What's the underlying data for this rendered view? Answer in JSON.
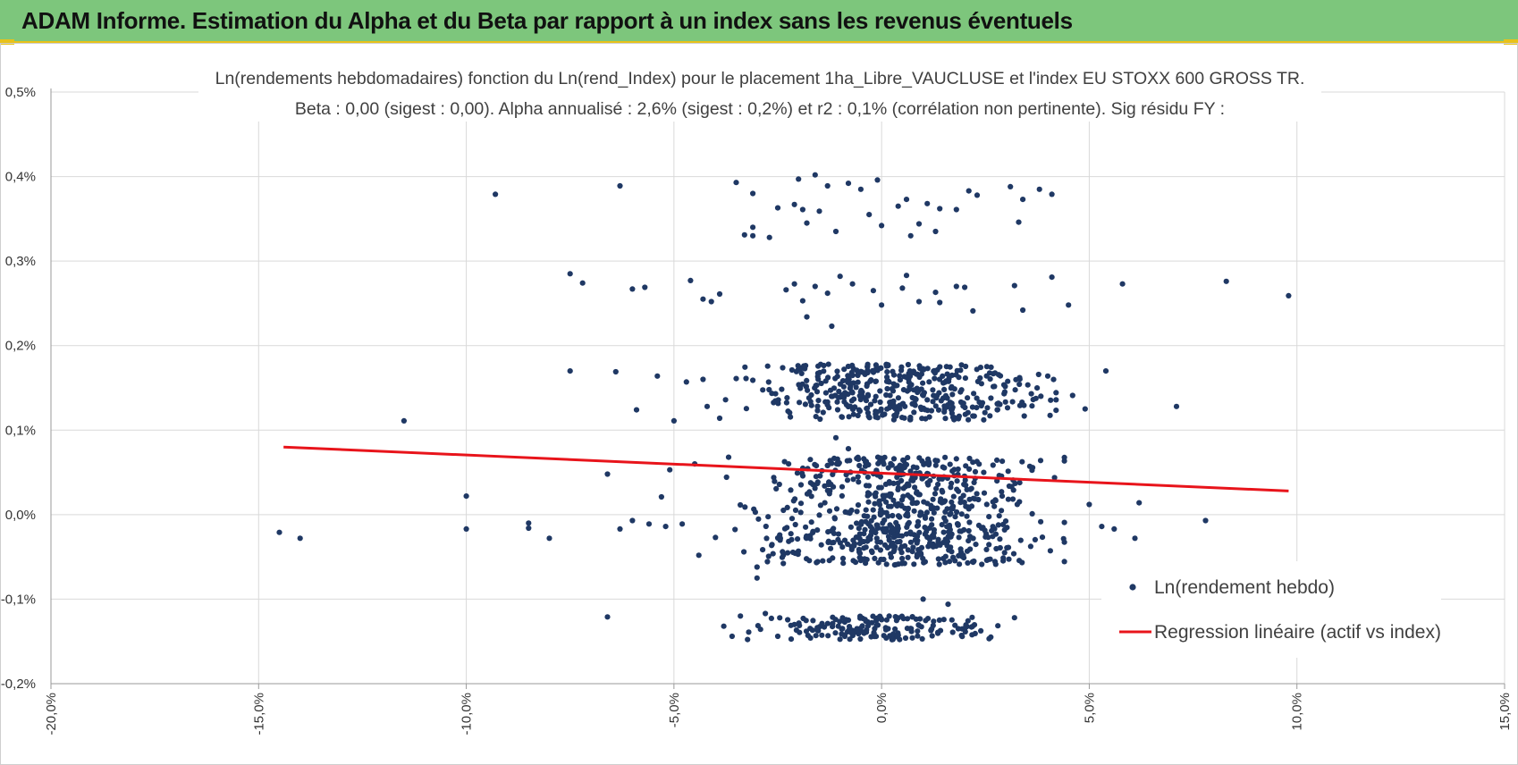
{
  "header": {
    "title": "ADAM Informe. Estimation du Alpha et du Beta par rapport à un index sans les revenus éventuels",
    "background_color": "#7dc67c",
    "accent_color": "#e8c21a"
  },
  "chart_data": {
    "type": "scatter",
    "title": [
      "Ln(rendements hebdomadaires) fonction du Ln(rend_Index) pour le placement 1ha_Libre_VAUCLUSE et l'index EU STOXX 600 GROSS TR.",
      "Beta : 0,00 (sigest : 0,00).  Alpha annualisé : 2,6% (sigest : 0,2%) et r2 : 0,1% (corrélation non pertinente). Sig résidu FY :"
    ],
    "xlabel": "",
    "ylabel": "",
    "xlim": [
      -20,
      15
    ],
    "ylim": [
      -0.2,
      0.5
    ],
    "x_ticks": [
      -20,
      -15,
      -10,
      -5,
      0,
      5,
      10,
      15
    ],
    "x_tick_labels": [
      "-20,0%",
      "-15,0%",
      "-10,0%",
      "-5,0%",
      "0,0%",
      "5,0%",
      "10,0%",
      "15,0%"
    ],
    "y_ticks": [
      -0.2,
      -0.1,
      0.0,
      0.1,
      0.2,
      0.3,
      0.4,
      0.5
    ],
    "y_tick_labels": [
      "-0,2%",
      "-0,1%",
      "0,0%",
      "0,1%",
      "0,2%",
      "0,3%",
      "0,4%",
      "0,5%"
    ],
    "grid": true,
    "legend_position": "bottom-right",
    "series": [
      {
        "name": "Ln(rendement hebdo)",
        "kind": "scatter",
        "color": "#1f3864",
        "points": [
          [
            -9.3,
            0.379
          ],
          [
            -6.3,
            0.389
          ],
          [
            -3.5,
            0.393
          ],
          [
            -3.1,
            0.38
          ],
          [
            -3.3,
            0.331
          ],
          [
            -3.1,
            0.34
          ],
          [
            -3.1,
            0.33
          ],
          [
            -2.7,
            0.328
          ],
          [
            -2.5,
            0.363
          ],
          [
            -2.1,
            0.367
          ],
          [
            -2.0,
            0.397
          ],
          [
            -1.9,
            0.361
          ],
          [
            -1.8,
            0.345
          ],
          [
            -1.6,
            0.402
          ],
          [
            -1.5,
            0.359
          ],
          [
            -1.3,
            0.389
          ],
          [
            -1.1,
            0.335
          ],
          [
            -0.8,
            0.392
          ],
          [
            -0.5,
            0.385
          ],
          [
            -0.3,
            0.355
          ],
          [
            -0.1,
            0.396
          ],
          [
            0.0,
            0.342
          ],
          [
            0.4,
            0.365
          ],
          [
            0.6,
            0.373
          ],
          [
            0.7,
            0.33
          ],
          [
            0.9,
            0.344
          ],
          [
            1.1,
            0.368
          ],
          [
            1.3,
            0.335
          ],
          [
            1.4,
            0.362
          ],
          [
            1.8,
            0.361
          ],
          [
            2.1,
            0.383
          ],
          [
            2.3,
            0.378
          ],
          [
            3.1,
            0.388
          ],
          [
            3.3,
            0.346
          ],
          [
            3.4,
            0.373
          ],
          [
            3.8,
            0.385
          ],
          [
            4.1,
            0.379
          ],
          [
            -7.5,
            0.285
          ],
          [
            -7.2,
            0.274
          ],
          [
            -6.0,
            0.267
          ],
          [
            -5.7,
            0.269
          ],
          [
            -4.6,
            0.277
          ],
          [
            -4.3,
            0.255
          ],
          [
            -4.1,
            0.252
          ],
          [
            -3.9,
            0.261
          ],
          [
            -2.3,
            0.266
          ],
          [
            -2.1,
            0.273
          ],
          [
            -1.9,
            0.253
          ],
          [
            -1.8,
            0.234
          ],
          [
            -1.6,
            0.27
          ],
          [
            -1.3,
            0.262
          ],
          [
            -1.2,
            0.223
          ],
          [
            -1.0,
            0.282
          ],
          [
            -0.7,
            0.273
          ],
          [
            -0.2,
            0.265
          ],
          [
            0.0,
            0.248
          ],
          [
            0.5,
            0.268
          ],
          [
            0.6,
            0.283
          ],
          [
            0.9,
            0.252
          ],
          [
            1.3,
            0.263
          ],
          [
            1.4,
            0.251
          ],
          [
            1.8,
            0.27
          ],
          [
            2.0,
            0.269
          ],
          [
            2.2,
            0.241
          ],
          [
            3.2,
            0.271
          ],
          [
            3.4,
            0.242
          ],
          [
            4.1,
            0.281
          ],
          [
            4.5,
            0.248
          ],
          [
            5.8,
            0.273
          ],
          [
            8.3,
            0.276
          ],
          [
            9.8,
            0.259
          ],
          [
            -11.5,
            0.111
          ],
          [
            -7.5,
            0.17
          ],
          [
            -6.4,
            0.169
          ],
          [
            -5.9,
            0.124
          ],
          [
            -5.4,
            0.164
          ],
          [
            -5.0,
            0.111
          ],
          [
            -4.7,
            0.157
          ],
          [
            -4.3,
            0.16
          ],
          [
            -4.2,
            0.128
          ],
          [
            -3.9,
            0.114
          ],
          [
            -3.5,
            0.161
          ],
          [
            -3.1,
            0.159
          ],
          [
            4.0,
            0.164
          ],
          [
            4.6,
            0.141
          ],
          [
            4.9,
            0.125
          ],
          [
            5.4,
            0.17
          ],
          [
            7.1,
            0.128
          ],
          [
            -10.0,
            0.022
          ],
          [
            -6.6,
            0.048
          ],
          [
            -5.3,
            0.021
          ],
          [
            -5.1,
            0.053
          ],
          [
            -4.5,
            0.06
          ],
          [
            -14.5,
            -0.021
          ],
          [
            -14.0,
            -0.028
          ],
          [
            -10.0,
            -0.017
          ],
          [
            -8.5,
            -0.01
          ],
          [
            -8.5,
            -0.016
          ],
          [
            -8.0,
            -0.028
          ],
          [
            -6.3,
            -0.017
          ],
          [
            -6.0,
            -0.007
          ],
          [
            -5.6,
            -0.011
          ],
          [
            -5.2,
            -0.014
          ],
          [
            -4.8,
            -0.011
          ],
          [
            -4.4,
            -0.048
          ],
          [
            -4.0,
            -0.027
          ],
          [
            5.0,
            0.012
          ],
          [
            5.3,
            -0.014
          ],
          [
            5.6,
            -0.017
          ],
          [
            6.1,
            -0.028
          ],
          [
            6.2,
            0.014
          ],
          [
            7.8,
            -0.007
          ],
          [
            -6.6,
            -0.121
          ],
          [
            -3.8,
            -0.132
          ],
          [
            -3.6,
            -0.144
          ],
          [
            -3.4,
            -0.12
          ],
          [
            -3.2,
            -0.139
          ],
          [
            -2.8,
            -0.117
          ],
          [
            -2.5,
            -0.144
          ],
          [
            -2.1,
            -0.13
          ],
          [
            3.2,
            -0.122
          ],
          [
            1.0,
            -0.1
          ],
          [
            1.6,
            -0.106
          ],
          [
            -1.1,
            0.091
          ],
          [
            -0.8,
            0.078
          ],
          [
            -3.0,
            -0.075
          ],
          [
            -3.0,
            -0.062
          ]
        ],
        "clusters": [
          {
            "x_range": [
              -4.1,
              4.2
            ],
            "x_center": 0.5,
            "x_spread": 1.6,
            "y_range": [
              0.112,
              0.178
            ],
            "count": 420
          },
          {
            "x_range": [
              -4.2,
              4.4
            ],
            "x_center": 0.5,
            "x_spread": 1.6,
            "y_range": [
              -0.06,
              0.068
            ],
            "count": 700
          },
          {
            "x_range": [
              -3.9,
              2.8
            ],
            "x_center": 0.0,
            "x_spread": 1.3,
            "y_range": [
              -0.148,
              -0.12
            ],
            "count": 170
          }
        ]
      },
      {
        "name": "Regression linéaire (actif vs index)",
        "kind": "line",
        "color": "#e8141b",
        "x": [
          -14.4,
          9.8
        ],
        "y": [
          0.08,
          0.028
        ]
      }
    ]
  }
}
